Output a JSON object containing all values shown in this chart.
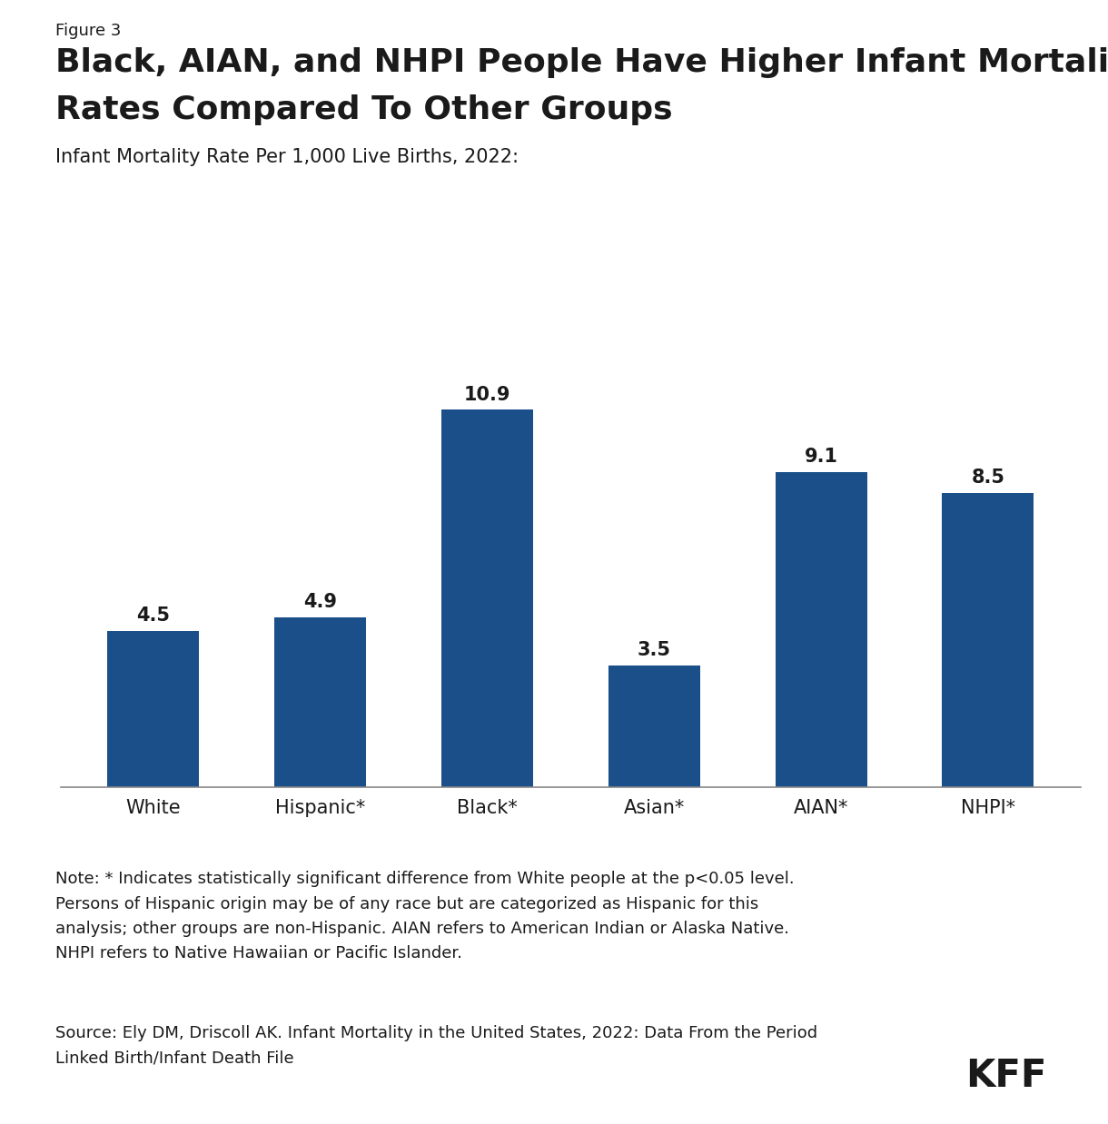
{
  "figure_label": "Figure 3",
  "title_line1": "Black, AIAN, and NHPI People Have Higher Infant Mortality",
  "title_line2": "Rates Compared To Other Groups",
  "subtitle": "Infant Mortality Rate Per 1,000 Live Births, 2022:",
  "categories": [
    "White",
    "Hispanic*",
    "Black*",
    "Asian*",
    "AIAN*",
    "NHPI*"
  ],
  "values": [
    4.5,
    4.9,
    10.9,
    3.5,
    9.1,
    8.5
  ],
  "bar_color": "#1a4f8a",
  "background_color": "#ffffff",
  "note_text": "Note: * Indicates statistically significant difference from White people at the p<0.05 level.\nPersons of Hispanic origin may be of any race but are categorized as Hispanic for this\nanalysis; other groups are non-Hispanic. AIAN refers to American Indian or Alaska Native.\nNHPI refers to Native Hawaiian or Pacific Islander.",
  "source_text": "Source: Ely DM, Driscoll AK. Infant Mortality in the United States, 2022: Data From the Period\nLinked Birth/Infant Death File",
  "kff_logo_text": "KFF",
  "ylim": [
    0,
    13
  ],
  "value_label_fontsize": 15,
  "category_fontsize": 15,
  "title_fontsize": 26,
  "figure_label_fontsize": 13,
  "subtitle_fontsize": 15,
  "note_fontsize": 13,
  "source_fontsize": 13,
  "kff_fontsize": 30
}
